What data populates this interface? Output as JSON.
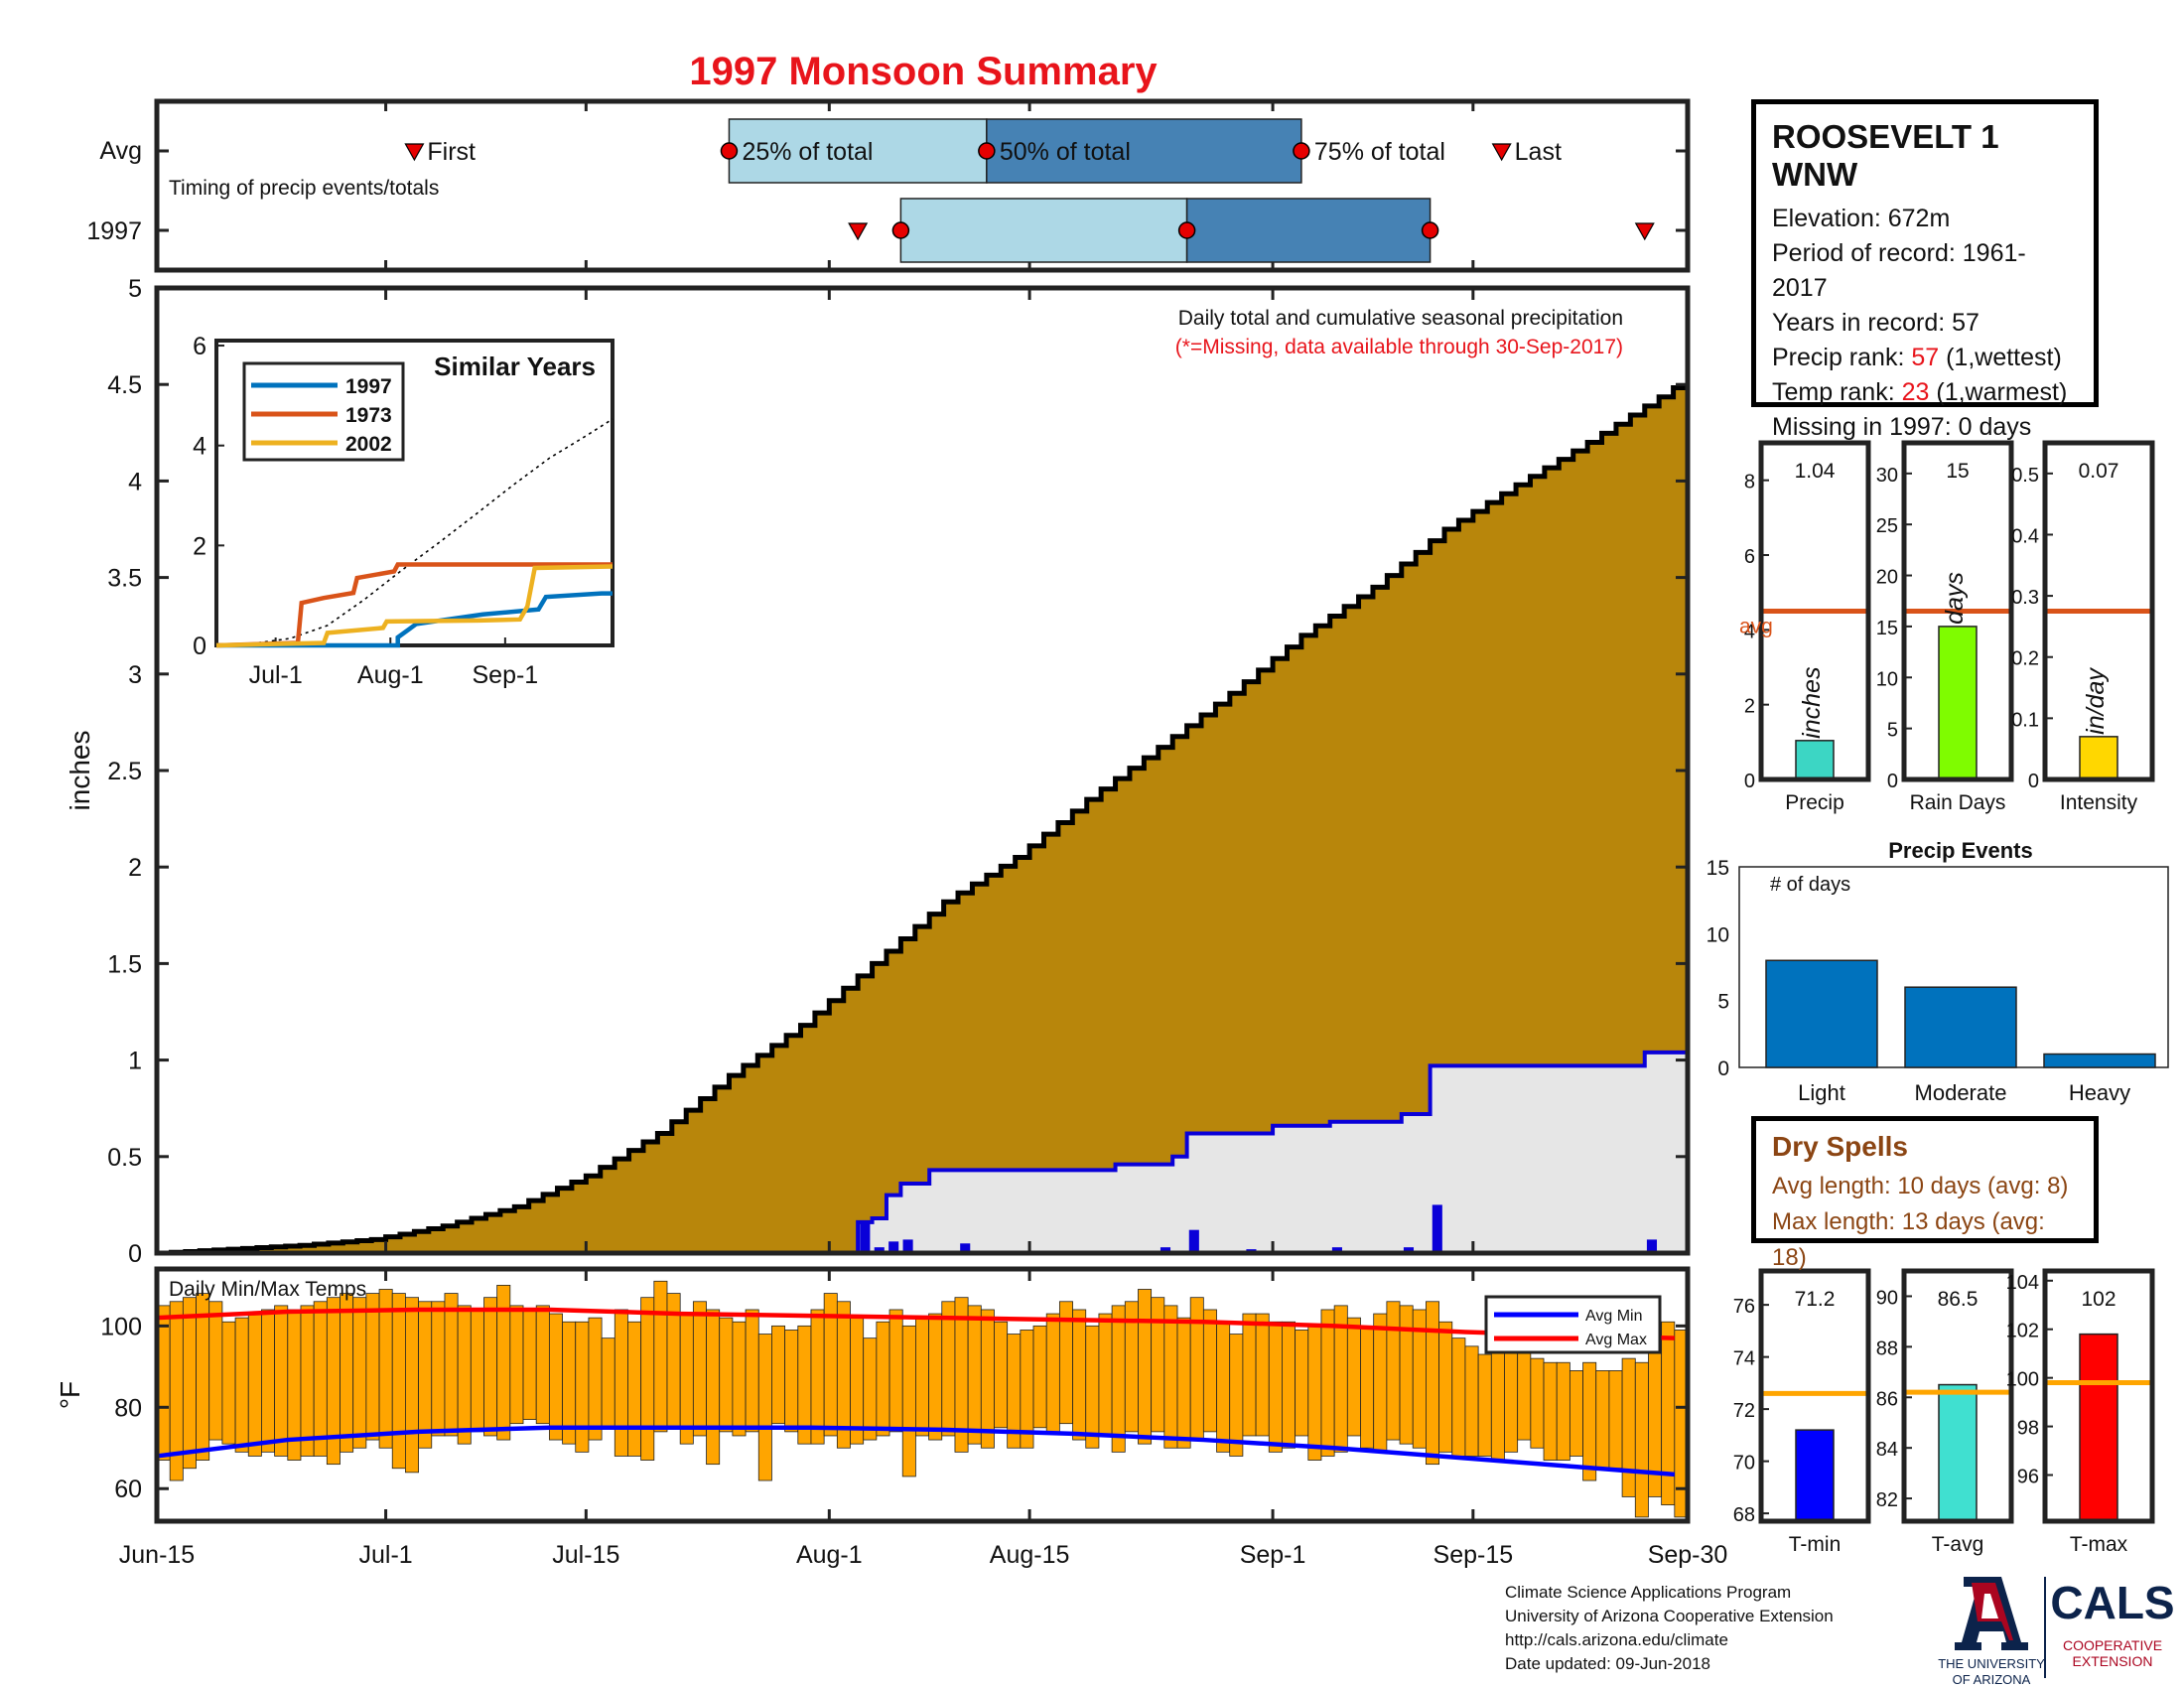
{
  "page": {
    "title": "1997 Monsoon Summary",
    "footer": [
      "Climate Science Applications Program",
      "University of Arizona Cooperative Extension",
      "http://cals.arizona.edu/climate",
      " Date updated: 09-Jun-2018"
    ],
    "logos": {
      "ua_line1": "THE UNIVERSITY",
      "ua_line2": "OF ARIZONA",
      "cals": "CALS",
      "cals_sub1": "COOPERATIVE",
      "cals_sub2": "EXTENSION"
    }
  },
  "colors": {
    "title": "#e8141b",
    "cumulative_fill": "#b8860b",
    "season_fill": "#e6e6e6",
    "light_blue": "#add8e6",
    "steel_blue": "#4682b4",
    "daily_bar": "#0a00d8",
    "temp_bar": "#ffa500",
    "avg_max": "#ff0000",
    "avg_min": "#0000ff",
    "avg_line": "#d95319",
    "dry_spells": "#8b4513"
  },
  "station": {
    "name": "ROOSEVELT 1 WNW",
    "lines": [
      {
        "label": "Elevation: ",
        "value": "672m",
        "suffix": ""
      },
      {
        "label": "Period of record: ",
        "value": "1961-2017",
        "suffix": ""
      },
      {
        "label": "Years in record: ",
        "value": "57",
        "suffix": ""
      },
      {
        "label": "Precip rank: ",
        "value": "57",
        "suffix": " (1,wettest)",
        "highlight": true
      },
      {
        "label": "Temp rank: ",
        "value": "23",
        "suffix": " (1,warmest)",
        "highlight": true
      },
      {
        "label": "Missing in 1997: ",
        "value": "0 days",
        "suffix": ""
      }
    ]
  },
  "dry_spells": {
    "title": "Dry Spells",
    "avg_line": "Avg length: 10 days (avg: 8)",
    "max_line": "Max length: 13 days (avg: 18)"
  },
  "chart_data": [
    {
      "id": "timing",
      "type": "box",
      "label": "Timing of precip events/totals",
      "rows": [
        "Avg",
        "1997"
      ],
      "x_axis_dates": [
        "Jun-15",
        "Jul-1",
        "Jul-15",
        "Aug-1",
        "Aug-15",
        "Sep-1",
        "Sep-15",
        "Sep-30"
      ],
      "avg": {
        "first": "2017-07-03",
        "p25": "2017-07-25",
        "p50": "2017-08-12",
        "p75": "2017-09-03",
        "last": "2017-09-17"
      },
      "year": {
        "first": "2017-08-03",
        "p25": "2017-08-06",
        "p50": "2017-08-26",
        "p75": "2017-09-12",
        "last": "2017-09-27"
      },
      "annotations": [
        "First",
        "25% of total",
        "50% of total",
        "75% of total",
        "Last"
      ]
    },
    {
      "id": "precip",
      "type": "area",
      "note": "Daily total and cumulative seasonal precipitation",
      "note2": "(*=Missing, data available through 30-Sep-2017)",
      "ylabel": "inches",
      "ylim": [
        0,
        5
      ],
      "yticks": [
        0,
        0.5,
        1,
        1.5,
        2,
        2.5,
        3,
        3.5,
        4,
        4.5,
        5
      ],
      "xticks": [
        "Jun-15",
        "Jul-1",
        "Jul-15",
        "Aug-1",
        "Aug-15",
        "Sep-1",
        "Sep-15",
        "Sep-30"
      ],
      "xlim": [
        "2017-06-15",
        "2017-09-30"
      ],
      "avg_cumulative": [
        [
          "2017-06-15",
          0
        ],
        [
          "2017-06-20",
          0.02
        ],
        [
          "2017-06-25",
          0.04
        ],
        [
          "2017-06-30",
          0.07
        ],
        [
          "2017-07-05",
          0.14
        ],
        [
          "2017-07-10",
          0.24
        ],
        [
          "2017-07-15",
          0.4
        ],
        [
          "2017-07-20",
          0.62
        ],
        [
          "2017-07-25",
          0.92
        ],
        [
          "2017-07-30",
          1.18
        ],
        [
          "2017-08-04",
          1.5
        ],
        [
          "2017-08-09",
          1.82
        ],
        [
          "2017-08-14",
          2.05
        ],
        [
          "2017-08-19",
          2.35
        ],
        [
          "2017-08-24",
          2.62
        ],
        [
          "2017-08-29",
          2.9
        ],
        [
          "2017-09-03",
          3.2
        ],
        [
          "2017-09-08",
          3.45
        ],
        [
          "2017-09-13",
          3.75
        ],
        [
          "2017-09-18",
          3.98
        ],
        [
          "2017-09-23",
          4.2
        ],
        [
          "2017-09-30",
          4.53
        ]
      ],
      "year_cumulative": [
        [
          "2017-06-15",
          0
        ],
        [
          "2017-08-02",
          0
        ],
        [
          "2017-08-03",
          0.16
        ],
        [
          "2017-08-04",
          0.18
        ],
        [
          "2017-08-05",
          0.3
        ],
        [
          "2017-08-06",
          0.36
        ],
        [
          "2017-08-08",
          0.43
        ],
        [
          "2017-08-21",
          0.46
        ],
        [
          "2017-08-25",
          0.5
        ],
        [
          "2017-08-26",
          0.62
        ],
        [
          "2017-09-01",
          0.66
        ],
        [
          "2017-09-05",
          0.68
        ],
        [
          "2017-09-10",
          0.72
        ],
        [
          "2017-09-12",
          0.97
        ],
        [
          "2017-09-27",
          1.04
        ],
        [
          "2017-09-30",
          1.04
        ]
      ],
      "daily_values": [
        [
          "2017-08-03",
          0.16
        ],
        [
          "2017-08-04",
          0.03
        ],
        [
          "2017-08-05",
          0.06
        ],
        [
          "2017-08-06",
          0.07
        ],
        [
          "2017-08-10",
          0.05
        ],
        [
          "2017-08-24",
          0.03
        ],
        [
          "2017-08-26",
          0.12
        ],
        [
          "2017-08-30",
          0.02
        ],
        [
          "2017-09-05",
          0.03
        ],
        [
          "2017-09-10",
          0.03
        ],
        [
          "2017-09-12",
          0.25
        ],
        [
          "2017-09-27",
          0.07
        ]
      ]
    },
    {
      "id": "similar",
      "type": "line",
      "title": "Similar Years",
      "ylim": [
        0,
        6
      ],
      "yticks": [
        0,
        2,
        4,
        6
      ],
      "xticks": [
        "Jul-1",
        "Aug-1",
        "Sep-1"
      ],
      "xlim": [
        "2017-06-15",
        "2017-09-30"
      ],
      "series": [
        {
          "name": "1997",
          "color": "#0072bd",
          "points": [
            [
              "2017-06-15",
              0
            ],
            [
              "2017-08-03",
              0
            ],
            [
              "2017-08-03",
              0.16
            ],
            [
              "2017-08-08",
              0.43
            ],
            [
              "2017-08-26",
              0.62
            ],
            [
              "2017-09-10",
              0.72
            ],
            [
              "2017-09-12",
              0.97
            ],
            [
              "2017-09-27",
              1.04
            ],
            [
              "2017-09-30",
              1.04
            ]
          ]
        },
        {
          "name": "1973",
          "color": "#d95319",
          "points": [
            [
              "2017-06-15",
              0
            ],
            [
              "2017-07-07",
              0.05
            ],
            [
              "2017-07-08",
              0.85
            ],
            [
              "2017-07-14",
              0.95
            ],
            [
              "2017-07-22",
              1.05
            ],
            [
              "2017-07-23",
              1.35
            ],
            [
              "2017-08-02",
              1.48
            ],
            [
              "2017-08-03",
              1.62
            ],
            [
              "2017-09-30",
              1.62
            ]
          ]
        },
        {
          "name": "2002",
          "color": "#edb120",
          "points": [
            [
              "2017-06-15",
              0
            ],
            [
              "2017-07-14",
              0.05
            ],
            [
              "2017-07-15",
              0.25
            ],
            [
              "2017-07-30",
              0.35
            ],
            [
              "2017-07-31",
              0.48
            ],
            [
              "2017-08-25",
              0.5
            ],
            [
              "2017-09-05",
              0.52
            ],
            [
              "2017-09-07",
              0.78
            ],
            [
              "2017-09-09",
              1.55
            ],
            [
              "2017-09-30",
              1.58
            ]
          ]
        }
      ],
      "avg_points": [
        [
          "2017-06-15",
          0
        ],
        [
          "2017-06-25",
          0.04
        ],
        [
          "2017-07-05",
          0.14
        ],
        [
          "2017-07-15",
          0.4
        ],
        [
          "2017-07-25",
          0.92
        ],
        [
          "2017-08-04",
          1.5
        ],
        [
          "2017-08-14",
          2.05
        ],
        [
          "2017-08-24",
          2.62
        ],
        [
          "2017-09-03",
          3.2
        ],
        [
          "2017-09-13",
          3.75
        ],
        [
          "2017-09-23",
          4.2
        ],
        [
          "2017-09-30",
          4.53
        ]
      ]
    },
    {
      "id": "temps",
      "type": "bar",
      "label": "Daily Min/Max Temps",
      "ylabel": "°F",
      "ylim": [
        52,
        114
      ],
      "yticks": [
        60,
        80,
        100
      ],
      "xticks": [
        "Jun-15",
        "Jul-1",
        "Jul-15",
        "Aug-1",
        "Aug-15",
        "Sep-1",
        "Sep-15",
        "Sep-30"
      ],
      "xlim": [
        "2017-06-15",
        "2017-09-30"
      ],
      "legend": [
        "Avg Min",
        "Avg Max"
      ],
      "max_values": [
        105,
        106,
        107,
        108,
        106,
        101,
        102,
        103,
        104,
        105,
        104,
        105,
        106,
        107,
        108,
        107,
        108,
        109,
        108,
        107,
        106,
        106,
        108,
        105,
        104,
        107,
        110,
        105,
        104,
        105,
        103,
        101,
        101,
        102,
        97,
        104,
        101,
        107,
        111,
        108,
        103,
        106,
        104,
        102,
        101,
        104,
        98,
        100,
        99,
        100,
        104,
        108,
        106,
        102,
        97,
        101,
        104,
        100,
        102,
        103,
        106,
        107,
        105,
        104,
        101,
        98,
        99,
        100,
        103,
        106,
        104,
        100,
        103,
        105,
        106,
        109,
        107,
        105,
        102,
        107,
        104,
        101,
        98,
        103,
        103,
        101,
        101,
        99,
        100,
        104,
        105,
        102,
        100,
        103,
        106,
        105,
        104,
        106,
        101,
        97,
        95,
        93,
        94,
        101,
        96,
        92,
        91,
        91,
        89,
        91,
        89,
        89,
        92,
        91,
        100,
        101,
        99
      ],
      "min_values": [
        67,
        62,
        65,
        67,
        72,
        71,
        69,
        68,
        69,
        68,
        67,
        68,
        68,
        66,
        69,
        70,
        72,
        70,
        65,
        64,
        70,
        73,
        73,
        71,
        74,
        73,
        72,
        76,
        77,
        76,
        72,
        71,
        69,
        72,
        75,
        68,
        68,
        67,
        74,
        75,
        71,
        73,
        66,
        74,
        73,
        74,
        62,
        76,
        74,
        71,
        71,
        73,
        70,
        71,
        72,
        73,
        74,
        63,
        73,
        72,
        73,
        69,
        71,
        70,
        75,
        70,
        70,
        75,
        74,
        76,
        72,
        70,
        73,
        69,
        74,
        71,
        74,
        70,
        70,
        72,
        74,
        69,
        68,
        73,
        73,
        69,
        70,
        73,
        67,
        68,
        69,
        73,
        70,
        69,
        72,
        71,
        70,
        66,
        69,
        68,
        68,
        68,
        67,
        69,
        72,
        70,
        67,
        67,
        68,
        62,
        65,
        65,
        58,
        53,
        58,
        56,
        53
      ],
      "avg_max": [
        [
          0,
          102
        ],
        [
          10,
          103.5
        ],
        [
          20,
          104
        ],
        [
          30,
          104
        ],
        [
          40,
          103
        ],
        [
          50,
          102.5
        ],
        [
          60,
          102
        ],
        [
          70,
          101.5
        ],
        [
          80,
          101
        ],
        [
          90,
          100
        ],
        [
          100,
          98.5
        ],
        [
          110,
          97.5
        ],
        [
          116,
          97
        ]
      ],
      "avg_min": [
        [
          0,
          68
        ],
        [
          10,
          72
        ],
        [
          20,
          74
        ],
        [
          30,
          75
        ],
        [
          40,
          75
        ],
        [
          50,
          75
        ],
        [
          60,
          74.5
        ],
        [
          70,
          73.5
        ],
        [
          80,
          72
        ],
        [
          90,
          70
        ],
        [
          100,
          67.5
        ],
        [
          110,
          65
        ],
        [
          116,
          63.5
        ]
      ]
    },
    {
      "id": "mini_precip",
      "type": "bar",
      "categories": [
        "Precip",
        "Rain Days",
        "Intensity"
      ],
      "panels": [
        {
          "label": "Precip",
          "value": 1.04,
          "value_text": "1.04",
          "avg": 4.5,
          "ylim": [
            0,
            9
          ],
          "yticks": [
            0,
            2,
            4,
            6,
            8
          ],
          "bar_label": "inches",
          "bar_color": "#3cd6c4",
          "avg_text": "avg"
        },
        {
          "label": "Rain Days",
          "value": 15,
          "value_text": "15",
          "avg": 16.5,
          "ylim": [
            0,
            33
          ],
          "yticks": [
            0,
            5,
            10,
            15,
            20,
            25,
            30
          ],
          "bar_label": "days",
          "bar_color": "#7ffc00",
          "avg_text": ""
        },
        {
          "label": "Intensity",
          "value": 0.07,
          "value_text": "0.07",
          "avg": 0.275,
          "ylim": [
            0,
            0.55
          ],
          "yticks": [
            0,
            0.1,
            0.2,
            0.3,
            0.4,
            0.5
          ],
          "bar_label": "in/day",
          "bar_color": "#ffd700",
          "avg_text": ""
        }
      ]
    },
    {
      "id": "events",
      "type": "bar",
      "title": "Precip Events",
      "note": "# of days",
      "categories": [
        "Light",
        "Moderate",
        "Heavy"
      ],
      "values": [
        8,
        6,
        1
      ],
      "ylim": [
        0,
        15
      ],
      "yticks": [
        0,
        5,
        10,
        15
      ]
    },
    {
      "id": "mini_temp",
      "type": "bar",
      "categories": [
        "T-min",
        "T-avg",
        "T-max"
      ],
      "panels": [
        {
          "label": "T-min",
          "value": 71.2,
          "value_text": "71.2",
          "avg": 72.6,
          "ylim": [
            67.7,
            77.3
          ],
          "yticks": [
            68,
            70,
            72,
            74,
            76
          ],
          "bar_color": "#0000ff"
        },
        {
          "label": "T-avg",
          "value": 86.5,
          "value_text": "86.5",
          "avg": 86.2,
          "ylim": [
            81.1,
            91.0
          ],
          "yticks": [
            82,
            84,
            86,
            88,
            90
          ],
          "bar_color": "#40e0d0"
        },
        {
          "label": "T-max",
          "value": 101.8,
          "value_text": "102",
          "avg": 99.8,
          "ylim": [
            94.1,
            104.4
          ],
          "yticks": [
            96,
            98,
            100,
            102,
            104
          ],
          "bar_color": "#ff0000"
        }
      ]
    }
  ]
}
